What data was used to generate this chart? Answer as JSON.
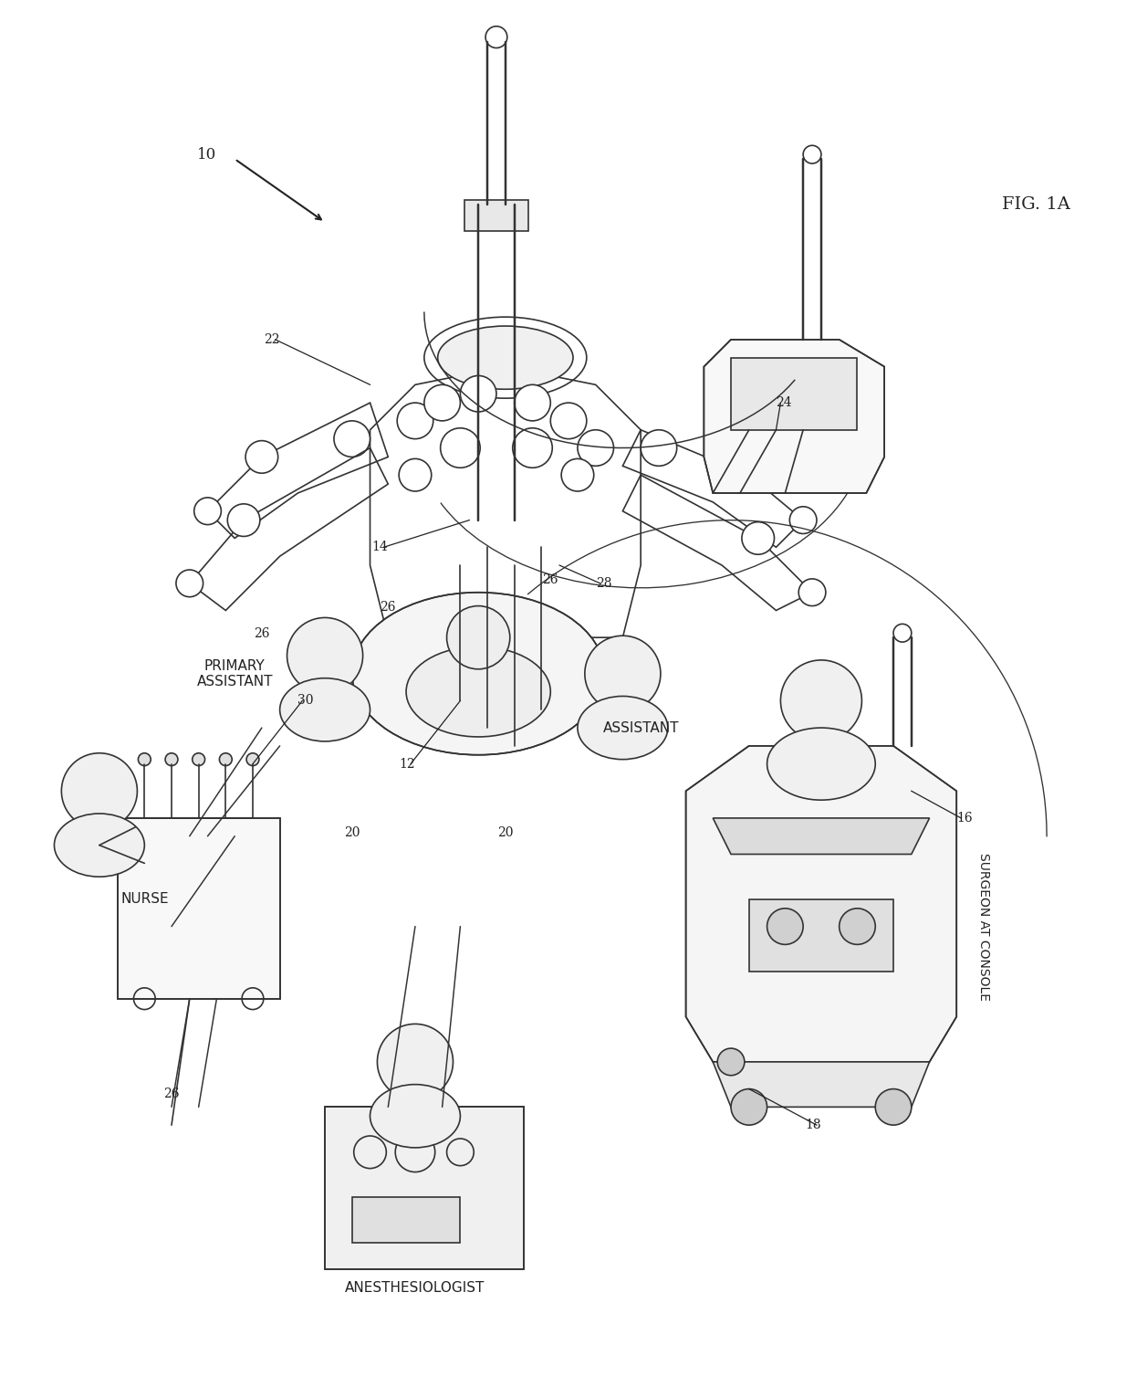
{
  "title": "FIG. 1A",
  "background_color": "#ffffff",
  "fig_width": 12.4,
  "fig_height": 15.16,
  "labels": {
    "fig_label": "FIG. 1A",
    "reference_10": "10",
    "primary_assistant": "PRIMARY\nASSISTANT",
    "nurse": "NURSE",
    "anesthesiologist": "ANESTHESIOLOGIST",
    "assistant": "ASSISTANT",
    "surgeon_at_console": "SURGEON AT CONSOLE",
    "ref_12": "12",
    "ref_14": "14",
    "ref_16": "16",
    "ref_18": "18",
    "ref_20a": "20",
    "ref_20b": "20",
    "ref_22": "22",
    "ref_24": "24",
    "ref_26a": "26",
    "ref_26b": "26",
    "ref_26c": "26",
    "ref_26d": "26",
    "ref_28": "28",
    "ref_30": "30"
  },
  "line_color": "#333333",
  "text_color": "#222222",
  "line_width": 1.2
}
